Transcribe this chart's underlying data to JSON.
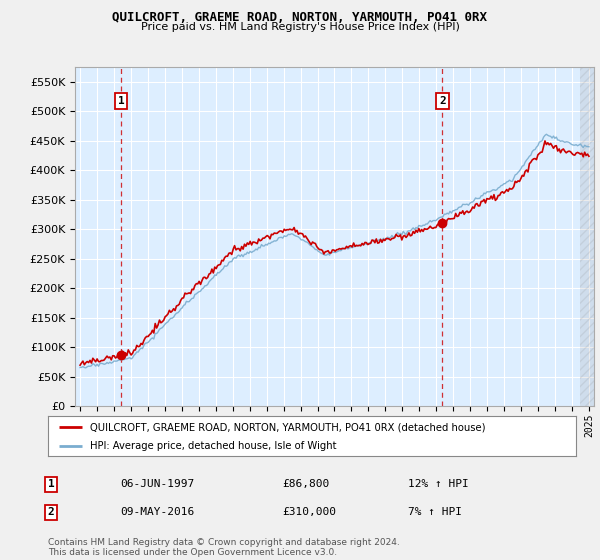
{
  "title": "QUILCROFT, GRAEME ROAD, NORTON, YARMOUTH, PO41 0RX",
  "subtitle": "Price paid vs. HM Land Registry's House Price Index (HPI)",
  "legend_line1": "QUILCROFT, GRAEME ROAD, NORTON, YARMOUTH, PO41 0RX (detached house)",
  "legend_line2": "HPI: Average price, detached house, Isle of Wight",
  "footer": "Contains HM Land Registry data © Crown copyright and database right 2024.\nThis data is licensed under the Open Government Licence v3.0.",
  "point1_date": "06-JUN-1997",
  "point1_price": "£86,800",
  "point1_hpi": "12% ↑ HPI",
  "point1_x": 1997.43,
  "point1_y": 86800,
  "point2_date": "09-MAY-2016",
  "point2_price": "£310,000",
  "point2_hpi": "7% ↑ HPI",
  "point2_x": 2016.36,
  "point2_y": 310000,
  "red_color": "#cc0000",
  "blue_color": "#7aadcf",
  "plot_bg": "#ddeeff",
  "bg_color": "#f0f0f0",
  "grid_color": "#ffffff",
  "ylim": [
    0,
    575000
  ],
  "xlim_start": 1994.7,
  "xlim_end": 2025.3,
  "yticks": [
    0,
    50000,
    100000,
    150000,
    200000,
    250000,
    300000,
    350000,
    400000,
    450000,
    500000,
    550000
  ],
  "xticks": [
    1995,
    1996,
    1997,
    1998,
    1999,
    2000,
    2001,
    2002,
    2003,
    2004,
    2005,
    2006,
    2007,
    2008,
    2009,
    2010,
    2011,
    2012,
    2013,
    2014,
    2015,
    2016,
    2017,
    2018,
    2019,
    2020,
    2021,
    2022,
    2023,
    2024,
    2025
  ]
}
